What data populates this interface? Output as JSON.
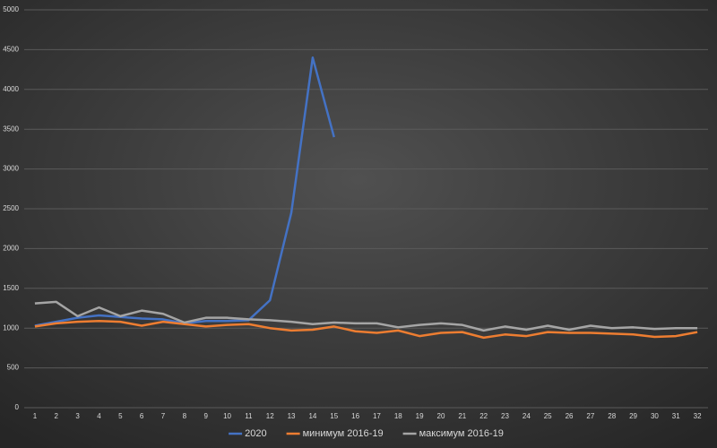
{
  "chart_data": {
    "type": "line",
    "categories": [
      1,
      2,
      3,
      4,
      5,
      6,
      7,
      8,
      9,
      10,
      11,
      12,
      13,
      14,
      15,
      16,
      17,
      18,
      19,
      20,
      21,
      22,
      23,
      24,
      25,
      26,
      27,
      28,
      29,
      30,
      31,
      32
    ],
    "series": [
      {
        "name": "2020",
        "color": "#4472c4",
        "values": [
          1030,
          1080,
          1130,
          1160,
          1140,
          1120,
          1110,
          1060,
          1090,
          1090,
          1100,
          1350,
          2450,
          4400,
          3400,
          null,
          null,
          null,
          null,
          null,
          null,
          null,
          null,
          null,
          null,
          null,
          null,
          null,
          null,
          null,
          null,
          null
        ]
      },
      {
        "name": "минимум 2016-19",
        "color": "#ed7d31",
        "values": [
          1020,
          1060,
          1080,
          1090,
          1080,
          1030,
          1080,
          1050,
          1020,
          1040,
          1050,
          1000,
          970,
          980,
          1020,
          960,
          940,
          970,
          900,
          940,
          950,
          880,
          920,
          900,
          950,
          940,
          940,
          930,
          920,
          890,
          900,
          950
        ]
      },
      {
        "name": "максимум 2016-19",
        "color": "#a5a5a5",
        "values": [
          1310,
          1330,
          1150,
          1260,
          1150,
          1220,
          1180,
          1070,
          1130,
          1130,
          1110,
          1100,
          1080,
          1050,
          1070,
          1060,
          1060,
          1010,
          1040,
          1060,
          1040,
          970,
          1020,
          980,
          1030,
          980,
          1030,
          1000,
          1010,
          990,
          1000,
          1000
        ]
      }
    ],
    "ylim": [
      0,
      5000
    ],
    "yticks": [
      0,
      500,
      1000,
      1500,
      2000,
      2500,
      3000,
      3500,
      4000,
      4500,
      5000
    ],
    "grid": true,
    "legend": "bottom"
  }
}
